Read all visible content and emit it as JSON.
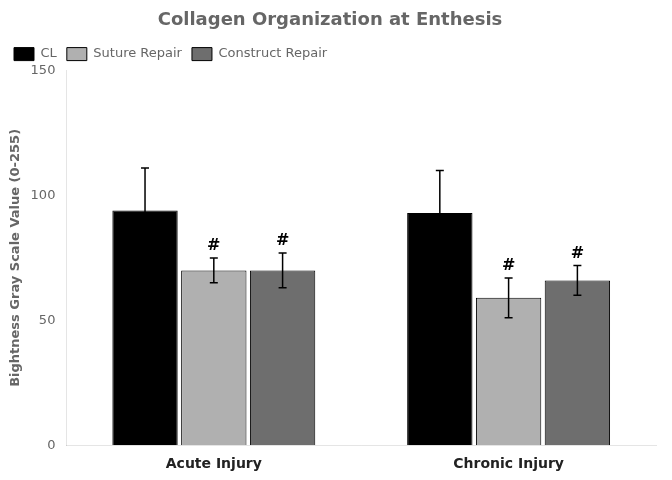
{
  "chart_data": {
    "type": "bar",
    "title": "Collagen Organization at Enthesis",
    "ylabel": "Bightness Gray Scale Value (0-255)",
    "categories": [
      "Acute Injury",
      "Chronic Injury"
    ],
    "series": [
      {
        "name": "CL",
        "color": "#000000",
        "values": [
          94,
          93
        ],
        "errors": [
          17,
          17
        ]
      },
      {
        "name": "Suture Repair",
        "color": "#b0b0b0",
        "values": [
          70,
          59
        ],
        "errors": [
          5,
          8
        ]
      },
      {
        "name": "Construct Repair",
        "color": "#6e6e6e",
        "values": [
          70,
          66
        ],
        "errors": [
          7,
          6
        ]
      }
    ],
    "annotations": [
      {
        "text": "#",
        "category": "Acute Injury",
        "series": "Suture Repair"
      },
      {
        "text": "#",
        "category": "Acute Injury",
        "series": "Construct Repair"
      },
      {
        "text": "#",
        "category": "Chronic Injury",
        "series": "Suture Repair"
      },
      {
        "text": "#",
        "category": "Chronic Injury",
        "series": "Construct Repair"
      }
    ],
    "ylim": [
      0,
      150
    ],
    "yticks": [
      0,
      50,
      100,
      150
    ],
    "grid": false,
    "legend": "upper left"
  }
}
